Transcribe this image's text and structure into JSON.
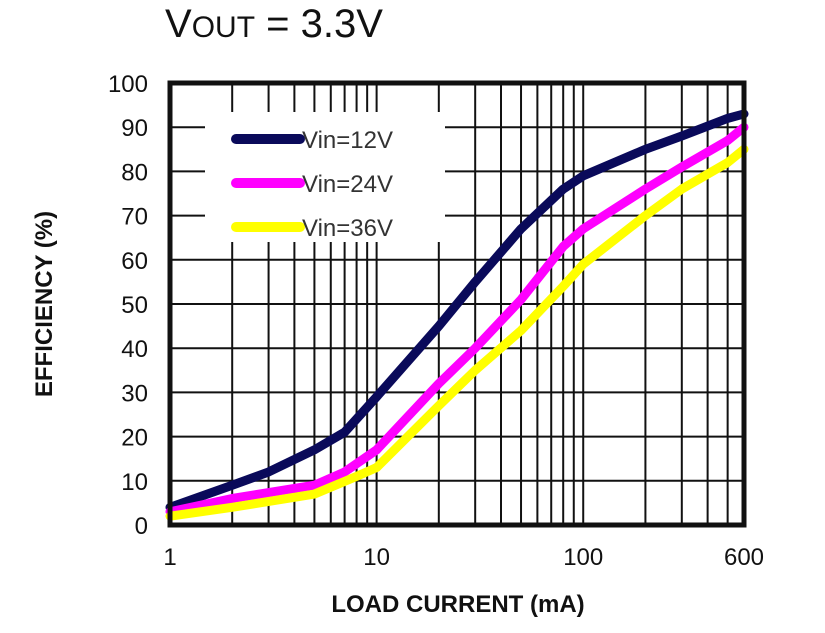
{
  "chart_data": {
    "type": "line",
    "title_main": "V",
    "title_sub": "OUT",
    "title_rest": " = 3.3V",
    "xlabel": "LOAD CURRENT (mA)",
    "ylabel": "EFFICIENCY (%)",
    "xscale": "log",
    "xlim": [
      1,
      600
    ],
    "ylim": [
      0,
      100
    ],
    "xticks": [
      1,
      10,
      100,
      600
    ],
    "xtick_labels": [
      "1",
      "10",
      "100",
      "600"
    ],
    "yticks": [
      0,
      10,
      20,
      30,
      40,
      50,
      60,
      70,
      80,
      90,
      100
    ],
    "ytick_labels": [
      "0",
      "10",
      "20",
      "30",
      "40",
      "50",
      "60",
      "70",
      "80",
      "90",
      "100"
    ],
    "grid": true,
    "legend_position": "top-left",
    "series": [
      {
        "name": "Vin=12V",
        "color": "#0a0a5a",
        "x": [
          1,
          2,
          3,
          5,
          7,
          10,
          20,
          30,
          50,
          80,
          100,
          200,
          300,
          500,
          600
        ],
        "y": [
          4,
          9,
          12,
          17,
          21,
          29,
          45,
          55,
          67,
          76,
          79,
          85,
          88,
          92,
          93
        ]
      },
      {
        "name": "Vin=24V",
        "color": "#ff00ff",
        "x": [
          1,
          2,
          5,
          7,
          10,
          20,
          30,
          50,
          80,
          100,
          200,
          300,
          500,
          600
        ],
        "y": [
          3,
          6,
          9,
          12,
          17,
          32,
          40,
          51,
          63,
          67,
          76,
          81,
          87,
          90
        ]
      },
      {
        "name": "Vin=36V",
        "color": "#ffff00",
        "x": [
          1,
          2,
          5,
          8,
          10,
          20,
          30,
          50,
          80,
          100,
          200,
          300,
          500,
          600
        ],
        "y": [
          2,
          4,
          7,
          11,
          13,
          27,
          35,
          44,
          54,
          59,
          70,
          76,
          82,
          85
        ]
      }
    ]
  }
}
